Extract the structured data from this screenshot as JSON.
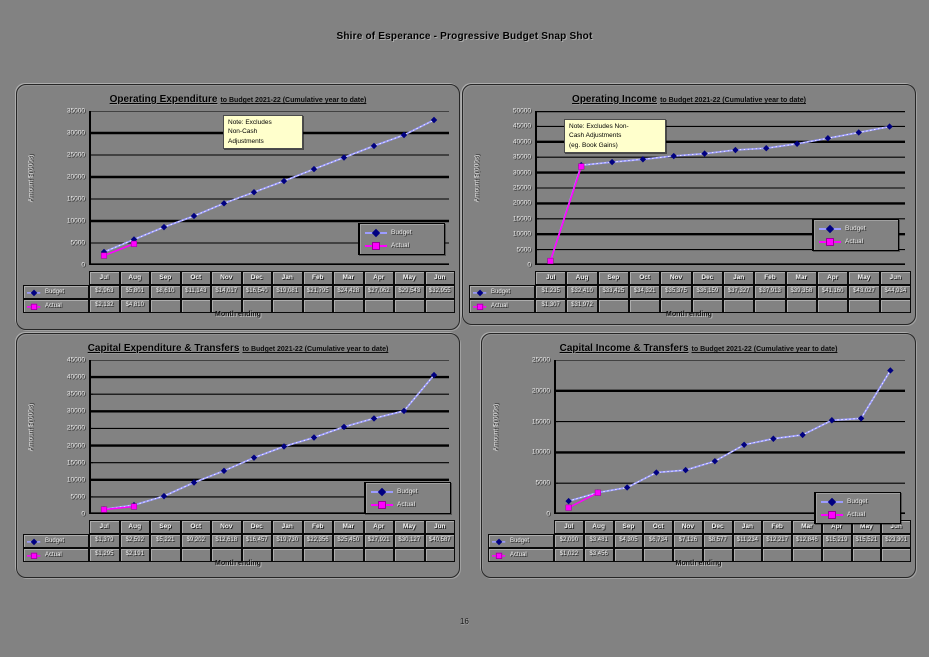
{
  "page": {
    "title": "Shire of Esperance - Progressive Budget Snap Shot",
    "page_number": "16"
  },
  "axis": {
    "x_title": "Month ending",
    "y_label": "Amount $('000s)"
  },
  "months": [
    "Jul",
    "Aug",
    "Sep",
    "Oct",
    "Nov",
    "Dec",
    "Jan",
    "Feb",
    "Mar",
    "Apr",
    "May",
    "Jun"
  ],
  "colors": {
    "budget_marker": "#000080",
    "budget_line": "#9c9cff",
    "actual_marker": "#ff00ff",
    "actual_line": "#ff00ff",
    "note_background": "#ffffcc",
    "page_background": "#828282",
    "gridline": "#000000"
  },
  "chart_data": [
    {
      "key": "operating-expenditure",
      "type": "line",
      "title": "Operating Expenditure",
      "subtitle": "to Budget 2021-22 (Cumulative year to date)",
      "note_lines": [
        "Note: Excludes",
        "Non-Cash",
        "Adjustments"
      ],
      "xlabel": "Month ending",
      "ylabel": "Amount $('000s)",
      "ylim": [
        0,
        35000
      ],
      "ystep": 5000,
      "grid": true,
      "legend_position": "right-middle",
      "categories": [
        "Jul",
        "Aug",
        "Sep",
        "Oct",
        "Nov",
        "Dec",
        "Jan",
        "Feb",
        "Mar",
        "Apr",
        "May",
        "Jun"
      ],
      "series": [
        {
          "name": "Budget",
          "marker": "diamond",
          "marker_color": "#000080",
          "line_color": "#9c9cff",
          "values": [
            2963,
            5801,
            8610,
            11143,
            14017,
            16540,
            19081,
            21795,
            24428,
            27062,
            29543,
            32955
          ]
        },
        {
          "name": "Actual",
          "marker": "square",
          "marker_color": "#ff00ff",
          "line_color": "#ff00ff",
          "values": [
            2132,
            4810
          ]
        }
      ]
    },
    {
      "key": "operating-income",
      "type": "line",
      "title": "Operating Income",
      "subtitle": "to Budget 2021-22 (Cumulative year to date)",
      "note_lines": [
        "Note: Excludes Non-",
        "Cash Adjustments",
        "(eg. Book Gains)"
      ],
      "xlabel": "Month ending",
      "ylabel": "Amount $('000s)",
      "ylim": [
        0,
        50000
      ],
      "ystep": 5000,
      "grid": true,
      "legend_position": "right-middle",
      "categories": [
        "Jul",
        "Aug",
        "Sep",
        "Oct",
        "Nov",
        "Dec",
        "Jan",
        "Feb",
        "Mar",
        "Apr",
        "May",
        "Jun"
      ],
      "series": [
        {
          "name": "Budget",
          "marker": "diamond",
          "marker_color": "#000080",
          "line_color": "#9c9cff",
          "values": [
            1235,
            32410,
            33425,
            34321,
            35375,
            36159,
            37327,
            37913,
            39358,
            41160,
            43027,
            44934
          ]
        },
        {
          "name": "Actual",
          "marker": "square",
          "marker_color": "#ff00ff",
          "line_color": "#ff00ff",
          "values": [
            1307,
            31972
          ]
        }
      ]
    },
    {
      "key": "capital-expenditure-transfers",
      "type": "line",
      "title": "Capital Expenditure & Transfers",
      "subtitle": "to Budget 2021-22 (Cumulative year to date)",
      "note_lines": null,
      "xlabel": "Month ending",
      "ylabel": "Amount $('000s)",
      "ylim": [
        0,
        45000
      ],
      "ystep": 5000,
      "grid": true,
      "legend_position": "right-lower",
      "categories": [
        "Jul",
        "Aug",
        "Sep",
        "Oct",
        "Nov",
        "Dec",
        "Jan",
        "Feb",
        "Mar",
        "Apr",
        "May",
        "Jun"
      ],
      "series": [
        {
          "name": "Budget",
          "marker": "diamond",
          "marker_color": "#000080",
          "line_color": "#9c9cff",
          "values": [
            1379,
            2592,
            5221,
            9202,
            12618,
            16457,
            19730,
            22356,
            25450,
            27921,
            30127,
            40587
          ]
        },
        {
          "name": "Actual",
          "marker": "square",
          "marker_color": "#ff00ff",
          "line_color": "#ff00ff",
          "values": [
            1295,
            2191
          ]
        }
      ]
    },
    {
      "key": "capital-income-transfers",
      "type": "line",
      "title": "Capital Income & Transfers",
      "subtitle": "to Budget 2021-22 (Cumulative year to date)",
      "note_lines": null,
      "xlabel": "Month ending",
      "ylabel": "Amount $('000s)",
      "ylim": [
        0,
        25000
      ],
      "ystep": 5000,
      "grid": true,
      "legend_position": "right-lower",
      "categories": [
        "Jul",
        "Aug",
        "Sep",
        "Oct",
        "Nov",
        "Dec",
        "Jan",
        "Feb",
        "Mar",
        "Apr",
        "May",
        "Jun"
      ],
      "series": [
        {
          "name": "Budget",
          "marker": "diamond",
          "marker_color": "#000080",
          "line_color": "#9c9cff",
          "values": [
            2090,
            3481,
            4305,
            6734,
            7126,
            8577,
            11234,
            12217,
            12846,
            15219,
            15521,
            23301
          ]
        },
        {
          "name": "Actual",
          "marker": "square",
          "marker_color": "#ff00ff",
          "line_color": "#ff00ff",
          "values": [
            1022,
            3456
          ]
        }
      ]
    }
  ]
}
